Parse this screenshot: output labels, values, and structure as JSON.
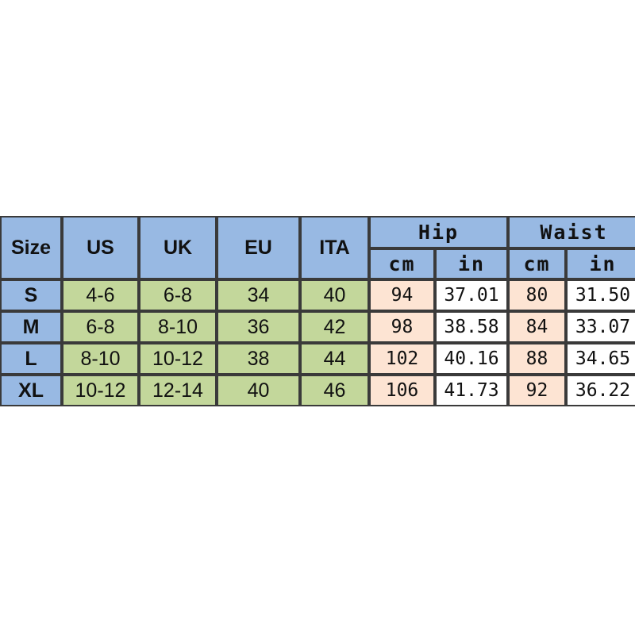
{
  "table": {
    "header": [
      "Size",
      "US",
      "UK",
      "EU",
      "ITA"
    ],
    "groups": [
      {
        "label": "Hip",
        "sub": [
          "cm",
          "in"
        ]
      },
      {
        "label": "Waist",
        "sub": [
          "cm",
          "in"
        ]
      }
    ],
    "rows": [
      [
        "S",
        "4-6",
        "6-8",
        "34",
        "40",
        "94",
        "37.01",
        "80",
        "31.50"
      ],
      [
        "M",
        "6-8",
        "8-10",
        "36",
        "42",
        "98",
        "38.58",
        "84",
        "33.07"
      ],
      [
        "L",
        "8-10",
        "10-12",
        "38",
        "44",
        "102",
        "40.16",
        "88",
        "34.65"
      ],
      [
        "XL",
        "10-12",
        "12-14",
        "40",
        "46",
        "106",
        "41.73",
        "92",
        "36.22"
      ]
    ]
  }
}
